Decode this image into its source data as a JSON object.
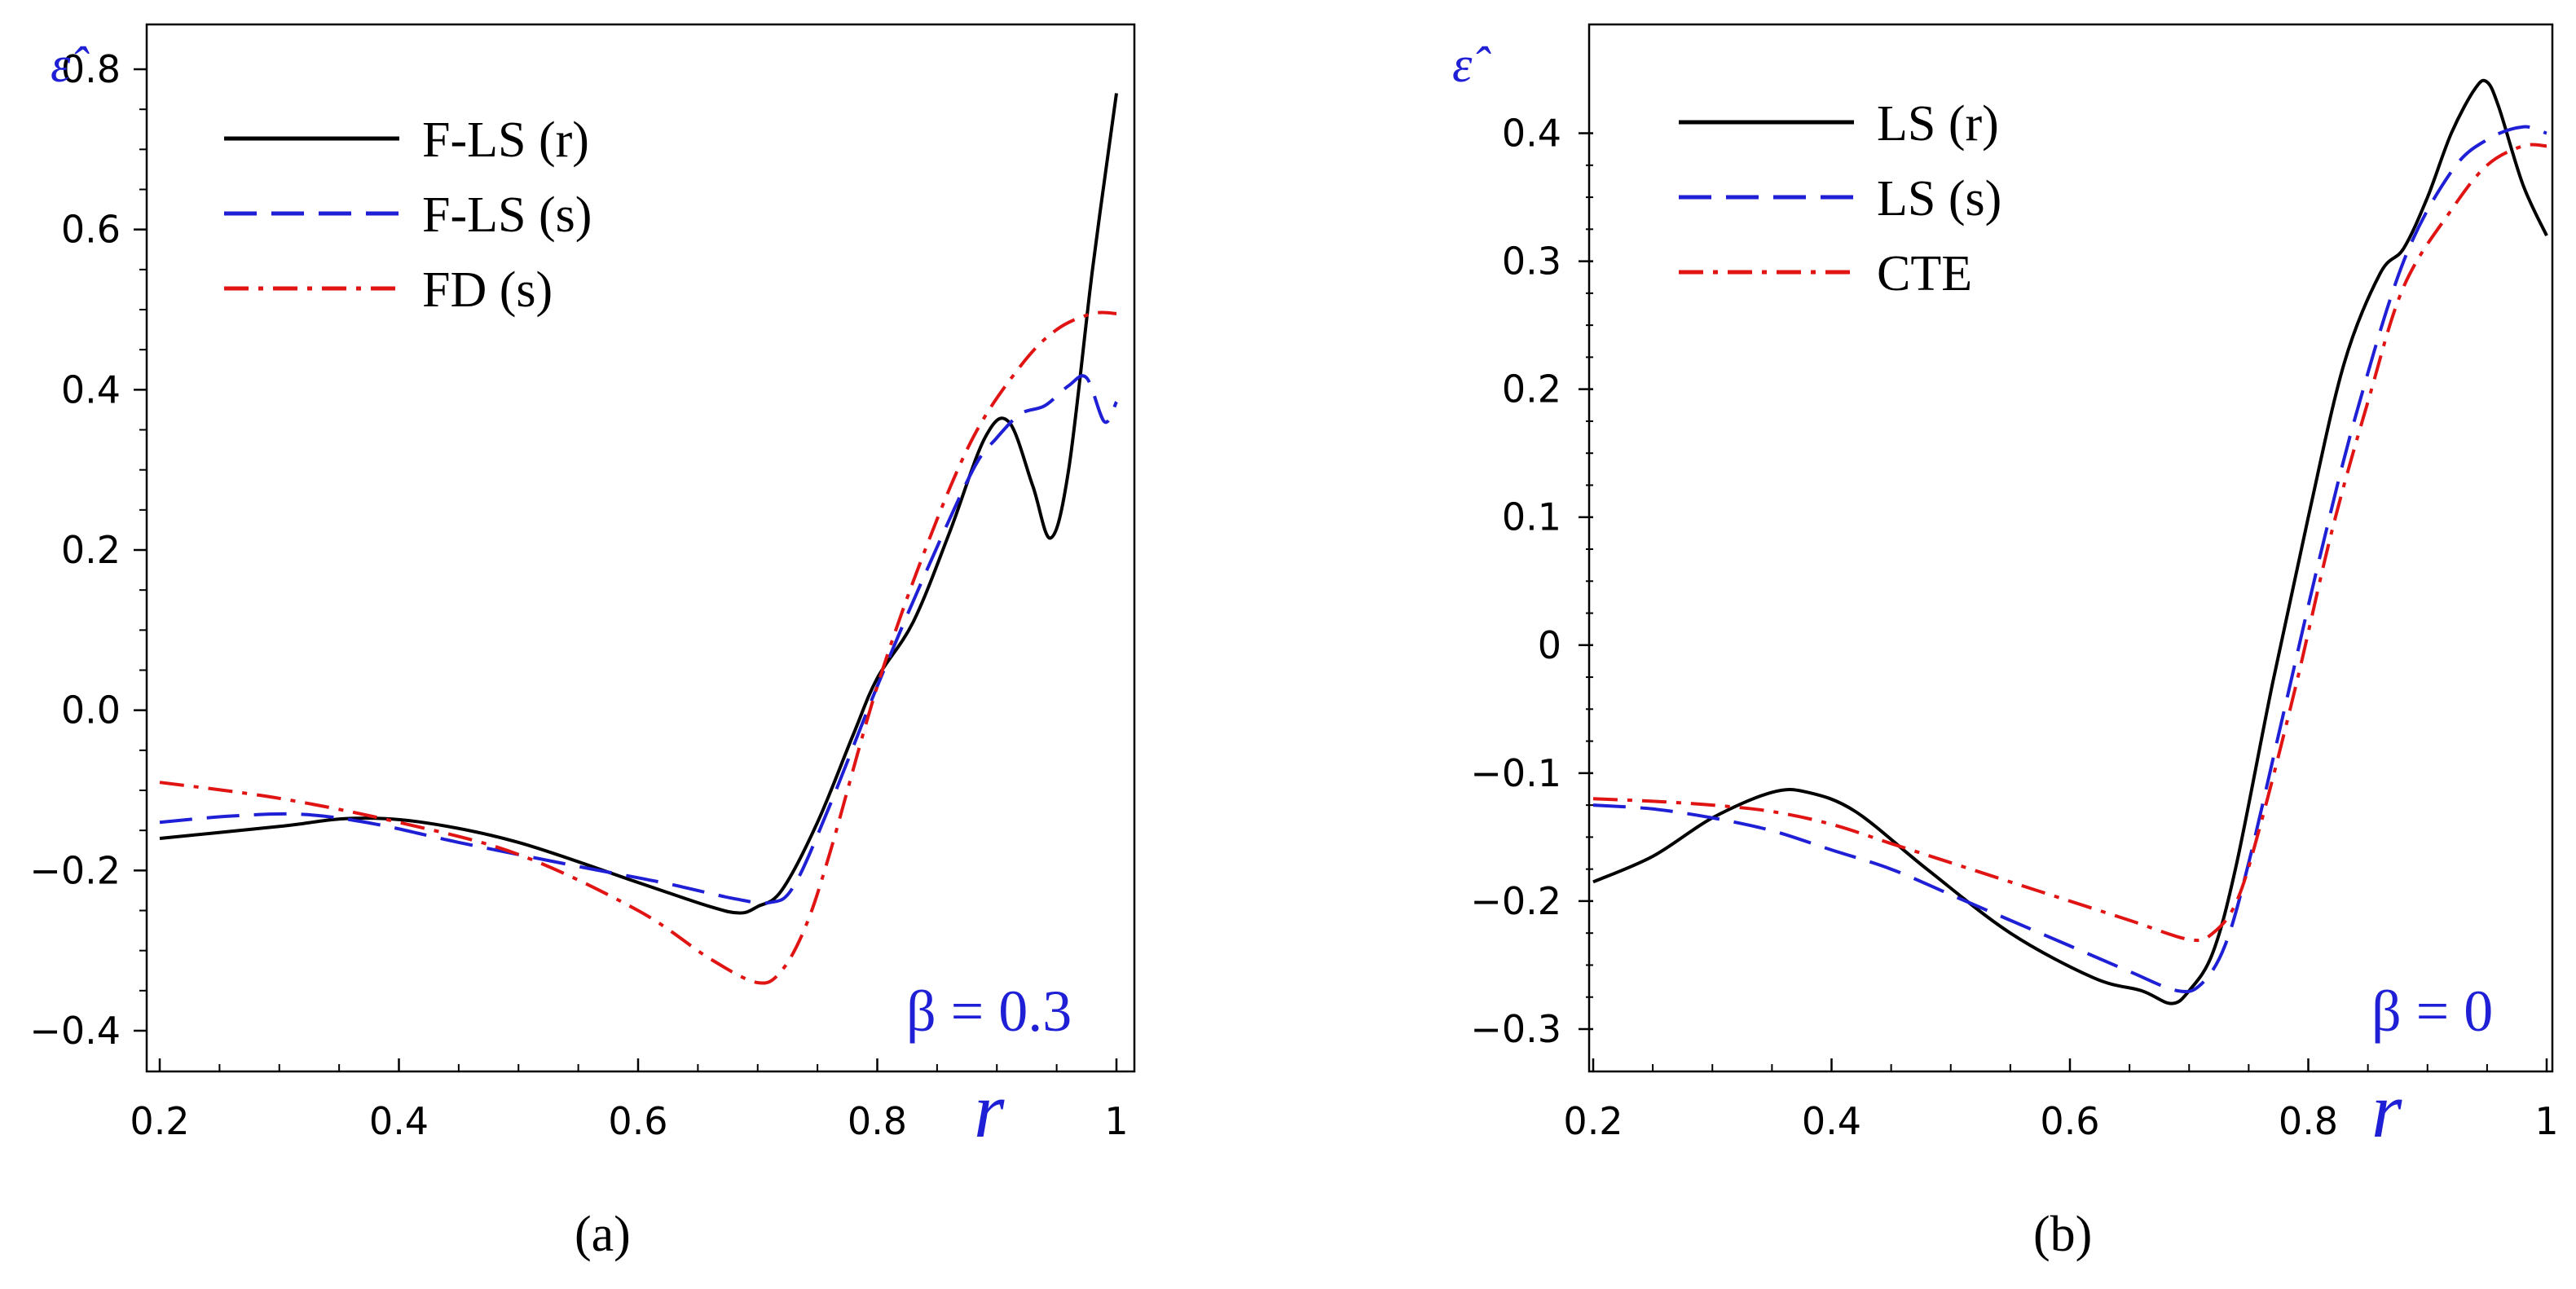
{
  "chart_data": [
    {
      "type": "line",
      "panel": "a",
      "caption": "(a)",
      "xlabel": "r",
      "ylabel": "ε̂",
      "annotation": "β = 0.3",
      "xlim": [
        0.2,
        1.0
      ],
      "ylim": [
        -0.4,
        0.8
      ],
      "xticks": [
        0.2,
        0.4,
        0.6,
        0.8,
        1.0
      ],
      "xtick_labels": [
        "0.2",
        "0.4",
        "0.6",
        "0.8",
        "1"
      ],
      "yticks": [
        -0.4,
        -0.2,
        0.0,
        0.2,
        0.4,
        0.6,
        0.8
      ],
      "ytick_labels": [
        "−0.4",
        "−0.2",
        "0.0",
        "0.2",
        "0.4",
        "0.6",
        "0.8"
      ],
      "legend_position": "top-left",
      "series": [
        {
          "name": "F-LS (r)",
          "color": "#000000",
          "dash": "solid",
          "x": [
            0.2,
            0.3,
            0.36,
            0.42,
            0.5,
            0.6,
            0.66,
            0.685,
            0.7,
            0.72,
            0.75,
            0.78,
            0.8,
            0.83,
            0.86,
            0.89,
            0.91,
            0.93,
            0.945,
            0.96,
            0.98,
            1.0
          ],
          "y": [
            -0.16,
            -0.145,
            -0.135,
            -0.14,
            -0.165,
            -0.215,
            -0.245,
            -0.253,
            -0.245,
            -0.225,
            -0.14,
            -0.03,
            0.04,
            0.11,
            0.22,
            0.34,
            0.36,
            0.28,
            0.215,
            0.3,
            0.55,
            0.77
          ]
        },
        {
          "name": "F-LS (s)",
          "color": "#1f1fd6",
          "dash": "long-dash",
          "x": [
            0.2,
            0.26,
            0.32,
            0.38,
            0.45,
            0.55,
            0.62,
            0.68,
            0.71,
            0.73,
            0.76,
            0.8,
            0.84,
            0.88,
            0.9,
            0.92,
            0.94,
            0.96,
            0.975,
            0.99,
            1.0
          ],
          "y": [
            -0.14,
            -0.132,
            -0.13,
            -0.142,
            -0.165,
            -0.195,
            -0.215,
            -0.235,
            -0.24,
            -0.22,
            -0.12,
            0.03,
            0.17,
            0.3,
            0.34,
            0.37,
            0.38,
            0.405,
            0.415,
            0.36,
            0.385
          ]
        },
        {
          "name": "FD (s)",
          "color": "#e11414",
          "dash": "dash-dot",
          "x": [
            0.2,
            0.3,
            0.4,
            0.5,
            0.6,
            0.66,
            0.7,
            0.72,
            0.74,
            0.76,
            0.8,
            0.84,
            0.88,
            0.92,
            0.95,
            0.98,
            1.0
          ],
          "y": [
            -0.09,
            -0.11,
            -0.14,
            -0.18,
            -0.25,
            -0.31,
            -0.34,
            -0.325,
            -0.27,
            -0.18,
            0.03,
            0.2,
            0.34,
            0.43,
            0.475,
            0.495,
            0.495
          ]
        }
      ]
    },
    {
      "type": "line",
      "panel": "b",
      "caption": "(b)",
      "xlabel": "r",
      "ylabel": "ε̂",
      "annotation": "β = 0",
      "xlim": [
        0.2,
        1.0
      ],
      "ylim": [
        -0.3,
        0.45
      ],
      "xticks": [
        0.2,
        0.4,
        0.6,
        0.8,
        1.0
      ],
      "xtick_labels": [
        "0.2",
        "0.4",
        "0.6",
        "0.8",
        "1"
      ],
      "yticks": [
        -0.3,
        -0.2,
        -0.1,
        0.0,
        0.1,
        0.2,
        0.3,
        0.4
      ],
      "ytick_labels": [
        "−0.3",
        "−0.2",
        "−0.1",
        "0",
        "0.1",
        "0.2",
        "0.3",
        "0.4"
      ],
      "legend_position": "top-left",
      "series": [
        {
          "name": "LS (r)",
          "color": "#000000",
          "dash": "solid",
          "x": [
            0.2,
            0.25,
            0.3,
            0.35,
            0.38,
            0.42,
            0.48,
            0.55,
            0.62,
            0.66,
            0.685,
            0.7,
            0.72,
            0.74,
            0.77,
            0.8,
            0.83,
            0.86,
            0.88,
            0.9,
            0.92,
            0.94,
            0.95,
            0.96,
            0.98,
            1.0
          ],
          "y": [
            -0.185,
            -0.165,
            -0.135,
            -0.115,
            -0.115,
            -0.13,
            -0.175,
            -0.225,
            -0.26,
            -0.27,
            -0.28,
            -0.27,
            -0.24,
            -0.17,
            -0.03,
            0.1,
            0.22,
            0.29,
            0.31,
            0.35,
            0.4,
            0.435,
            0.44,
            0.42,
            0.36,
            0.32
          ]
        },
        {
          "name": "LS (s)",
          "color": "#1f1fd6",
          "dash": "long-dash",
          "x": [
            0.2,
            0.25,
            0.3,
            0.35,
            0.4,
            0.45,
            0.5,
            0.55,
            0.6,
            0.65,
            0.69,
            0.71,
            0.73,
            0.75,
            0.78,
            0.81,
            0.84,
            0.88,
            0.92,
            0.95,
            0.98,
            1.0
          ],
          "y": [
            -0.125,
            -0.128,
            -0.135,
            -0.145,
            -0.16,
            -0.175,
            -0.195,
            -0.215,
            -0.235,
            -0.255,
            -0.27,
            -0.265,
            -0.235,
            -0.17,
            -0.05,
            0.07,
            0.18,
            0.3,
            0.37,
            0.395,
            0.405,
            0.4
          ]
        },
        {
          "name": "CTE",
          "color": "#e11414",
          "dash": "dash-dot",
          "x": [
            0.2,
            0.25,
            0.3,
            0.35,
            0.4,
            0.45,
            0.5,
            0.55,
            0.6,
            0.65,
            0.7,
            0.72,
            0.74,
            0.76,
            0.79,
            0.82,
            0.85,
            0.88,
            0.92,
            0.95,
            0.98,
            1.0
          ],
          "y": [
            -0.12,
            -0.122,
            -0.125,
            -0.13,
            -0.14,
            -0.155,
            -0.17,
            -0.185,
            -0.2,
            -0.215,
            -0.23,
            -0.225,
            -0.2,
            -0.14,
            -0.03,
            0.09,
            0.19,
            0.28,
            0.34,
            0.375,
            0.39,
            0.39
          ]
        }
      ]
    }
  ]
}
